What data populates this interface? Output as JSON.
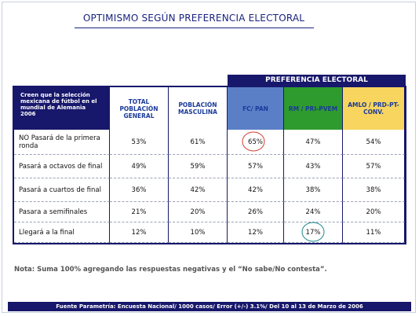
{
  "title": "OPTIMISMO SEGÚN PREFERENCIA ELECTORAL",
  "table": {
    "group_header": "PREFERENCIA ELECTORAL",
    "header": [
      "Creen que la selección mexicana de fútbol en el mundial de Alemania 2006",
      "TOTAL POBLACIÓN GENERAL",
      "POBLACIÓN MASCULINA",
      "FC/ PAN",
      "RM / PRI-PVEM",
      "AMLO / PRD-PT-CONV."
    ],
    "rows": [
      [
        "NO Pasará de la primera ronda",
        "53%",
        "61%",
        "65%",
        "47%",
        "54%"
      ],
      [
        "Pasará a octavos de final",
        "49%",
        "59%",
        "57%",
        "43%",
        "57%"
      ],
      [
        "Pasará a cuartos de final",
        "36%",
        "42%",
        "42%",
        "38%",
        "38%"
      ],
      [
        "Pasara a semifinales",
        "21%",
        "20%",
        "26%",
        "24%",
        "20%"
      ],
      [
        "Llegará a la final",
        "12%",
        "10%",
        "12%",
        "17%",
        "11%"
      ]
    ]
  },
  "note": "Nota: Suma 100% agregando las respuestas negativas y el “No sabe/No contesta”.",
  "footer": "Fuente Parametría: Encuesta Nacional/ 1000 casos/ Error (+/-) 3.1%/ Del 10 al 13 de Marzo  de 2006"
}
